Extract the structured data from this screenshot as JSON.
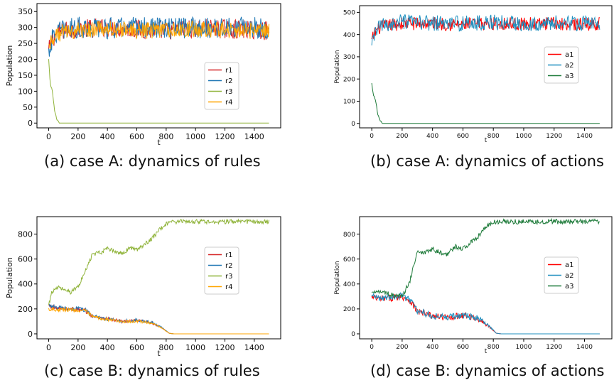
{
  "chart_data": [
    {
      "type": "line",
      "caption": "(a) case A: dynamics of rules",
      "xlabel": "t",
      "ylabel": "Population",
      "xlim": [
        -80,
        1580
      ],
      "ylim": [
        -15,
        375
      ],
      "xticks": [
        0,
        200,
        400,
        600,
        800,
        1000,
        1200,
        1400
      ],
      "yticks": [
        0,
        50,
        100,
        150,
        200,
        250,
        300,
        350
      ],
      "legend": "center-right",
      "series": [
        {
          "name": "r1",
          "color": "#d62728",
          "x": [
            0,
            20,
            50,
            100,
            200,
            400,
            600,
            800,
            1000,
            1200,
            1400,
            1500
          ],
          "values": [
            225,
            260,
            280,
            290,
            295,
            300,
            295,
            290,
            298,
            295,
            292,
            290
          ],
          "noise": 30
        },
        {
          "name": "r2",
          "color": "#1f77b4",
          "x": [
            0,
            20,
            50,
            100,
            200,
            400,
            600,
            800,
            1000,
            1200,
            1400,
            1500
          ],
          "values": [
            225,
            258,
            282,
            292,
            300,
            298,
            300,
            296,
            300,
            298,
            302,
            295
          ],
          "noise": 34
        },
        {
          "name": "r3",
          "color": "#8fb339",
          "x": [
            0,
            10,
            25,
            40,
            55,
            70,
            1500
          ],
          "values": [
            200,
            125,
            100,
            40,
            12,
            0,
            0
          ],
          "noise": 0
        },
        {
          "name": "r4",
          "color": "#ffa600",
          "x": [
            0,
            20,
            50,
            100,
            200,
            400,
            600,
            800,
            1000,
            1200,
            1400,
            1500
          ],
          "values": [
            240,
            262,
            278,
            285,
            292,
            295,
            290,
            292,
            295,
            293,
            290,
            288
          ],
          "noise": 26
        }
      ]
    },
    {
      "type": "line",
      "caption": "(b) case A: dynamics of actions",
      "xlabel": "t",
      "ylabel": "Population",
      "xlim": [
        -80,
        1580
      ],
      "ylim": [
        -20,
        530
      ],
      "xticks": [
        0,
        200,
        400,
        600,
        800,
        1000,
        1200,
        1400
      ],
      "yticks": [
        0,
        100,
        200,
        300,
        400,
        500
      ],
      "legend": "center-right",
      "series": [
        {
          "name": "a1",
          "color": "#ff0000",
          "x": [
            0,
            20,
            50,
            100,
            200,
            400,
            600,
            800,
            1000,
            1200,
            1400,
            1500
          ],
          "values": [
            370,
            410,
            430,
            440,
            450,
            450,
            445,
            450,
            448,
            450,
            445,
            450
          ],
          "noise": 30
        },
        {
          "name": "a2",
          "color": "#1f8fbf",
          "x": [
            0,
            20,
            50,
            100,
            200,
            400,
            600,
            800,
            1000,
            1200,
            1400,
            1500
          ],
          "values": [
            340,
            410,
            435,
            445,
            455,
            452,
            450,
            455,
            450,
            452,
            450,
            448
          ],
          "noise": 35
        },
        {
          "name": "a3",
          "color": "#1e7b3a",
          "x": [
            0,
            10,
            25,
            40,
            55,
            70,
            1500
          ],
          "values": [
            180,
            130,
            105,
            40,
            12,
            0,
            0
          ],
          "noise": 0
        }
      ]
    },
    {
      "type": "line",
      "caption": "(c) case B: dynamics of rules",
      "xlabel": "t",
      "ylabel": "Population",
      "xlim": [
        -80,
        1580
      ],
      "ylim": [
        -40,
        940
      ],
      "xticks": [
        0,
        200,
        400,
        600,
        800,
        1000,
        1200,
        1400
      ],
      "yticks": [
        0,
        200,
        400,
        600,
        800
      ],
      "legend": "center-right",
      "series": [
        {
          "name": "r1",
          "color": "#d62728",
          "x": [
            0,
            50,
            100,
            200,
            250,
            300,
            400,
            500,
            600,
            700,
            780,
            820,
            850,
            1500
          ],
          "values": [
            225,
            205,
            200,
            195,
            185,
            140,
            120,
            100,
            105,
            90,
            40,
            5,
            0,
            0
          ],
          "noise": 18
        },
        {
          "name": "r2",
          "color": "#1f77b4",
          "x": [
            0,
            50,
            100,
            200,
            250,
            300,
            400,
            500,
            600,
            700,
            780,
            820,
            850,
            1500
          ],
          "values": [
            230,
            210,
            205,
            200,
            190,
            145,
            118,
            102,
            108,
            92,
            45,
            5,
            0,
            0
          ],
          "noise": 18
        },
        {
          "name": "r3",
          "color": "#8fb339",
          "x": [
            0,
            20,
            50,
            100,
            150,
            200,
            250,
            300,
            350,
            400,
            450,
            500,
            550,
            600,
            650,
            700,
            750,
            800,
            850,
            1500
          ],
          "values": [
            225,
            330,
            375,
            365,
            335,
            380,
            500,
            640,
            650,
            680,
            660,
            640,
            690,
            670,
            720,
            760,
            830,
            880,
            900,
            900
          ],
          "noise": 18
        },
        {
          "name": "r4",
          "color": "#ffa600",
          "x": [
            0,
            50,
            100,
            200,
            250,
            300,
            400,
            500,
            600,
            700,
            780,
            820,
            850,
            1500
          ],
          "values": [
            200,
            195,
            195,
            190,
            180,
            135,
            115,
            98,
            100,
            88,
            40,
            5,
            0,
            0
          ],
          "noise": 16
        }
      ]
    },
    {
      "type": "line",
      "caption": "(d) case B: dynamics of actions",
      "xlabel": "t",
      "ylabel": "Population",
      "xlim": [
        -80,
        1580
      ],
      "ylim": [
        -40,
        940
      ],
      "xticks": [
        0,
        200,
        400,
        600,
        800,
        1000,
        1200,
        1400
      ],
      "yticks": [
        0,
        200,
        400,
        600,
        800
      ],
      "legend": "center-right",
      "series": [
        {
          "name": "a1",
          "color": "#ff0000",
          "x": [
            0,
            50,
            100,
            200,
            250,
            300,
            400,
            500,
            600,
            700,
            780,
            820,
            850,
            1500
          ],
          "values": [
            290,
            280,
            285,
            300,
            270,
            180,
            140,
            130,
            150,
            120,
            50,
            5,
            0,
            0
          ],
          "noise": 28
        },
        {
          "name": "a2",
          "color": "#1f8fbf",
          "x": [
            0,
            50,
            100,
            200,
            250,
            300,
            400,
            500,
            600,
            700,
            780,
            820,
            850,
            1500
          ],
          "values": [
            300,
            290,
            295,
            305,
            275,
            185,
            145,
            135,
            150,
            125,
            55,
            5,
            0,
            0
          ],
          "noise": 28
        },
        {
          "name": "a3",
          "color": "#1e7b3a",
          "x": [
            0,
            20,
            50,
            100,
            150,
            200,
            250,
            300,
            350,
            400,
            450,
            500,
            550,
            600,
            650,
            700,
            750,
            800,
            850,
            1500
          ],
          "values": [
            320,
            350,
            340,
            330,
            300,
            300,
            420,
            660,
            650,
            680,
            650,
            640,
            700,
            680,
            730,
            780,
            850,
            900,
            900,
            900
          ],
          "noise": 20
        }
      ]
    }
  ]
}
